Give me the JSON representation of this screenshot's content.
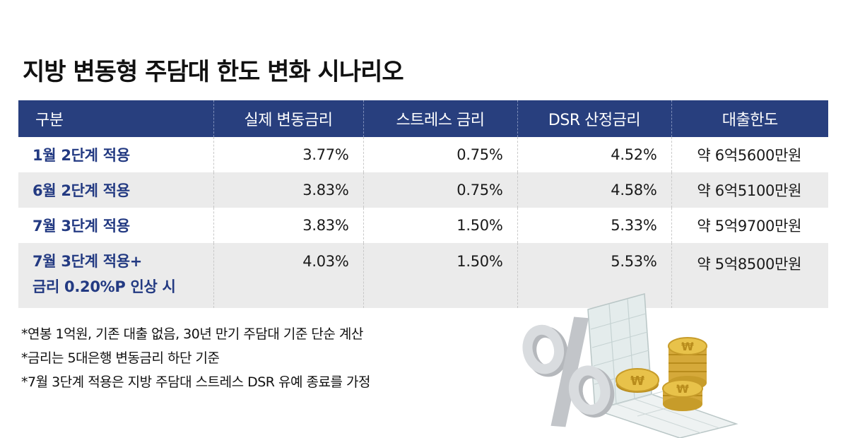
{
  "title": "지방 변동형 주담대 한도 변화 시나리오",
  "table": {
    "headers": [
      "구분",
      "실제 변동금리",
      "스트레스 금리",
      "DSR 산정금리",
      "대출한도"
    ],
    "rows": [
      {
        "label": "1월 2단계 적용",
        "label2": "",
        "actual_rate": "3.77%",
        "stress_rate": "0.75%",
        "dsr_rate": "4.52%",
        "limit": "약 6억5600만원"
      },
      {
        "label": "6월 2단계 적용",
        "label2": "",
        "actual_rate": "3.83%",
        "stress_rate": "0.75%",
        "dsr_rate": "4.58%",
        "limit": "약 6억5100만원"
      },
      {
        "label": "7월 3단계 적용",
        "label2": "",
        "actual_rate": "3.83%",
        "stress_rate": "1.50%",
        "dsr_rate": "5.33%",
        "limit": "약 5억9700만원"
      },
      {
        "label": "7월 3단계 적용+",
        "label2": "금리 0.20%P 인상 시",
        "actual_rate": "4.03%",
        "stress_rate": "1.50%",
        "dsr_rate": "5.53%",
        "limit": "약 5억8500만원"
      }
    ]
  },
  "notes": [
    "*연봉 1억원, 기존 대출 없음, 30년 만기 주담대 기준 단순 계산",
    "*금리는 5대은행 변동금리 하단 기준",
    "*7월 3단계 적용은 지방 주담대 스트레스 DSR 유예 종료를 가정"
  ],
  "colors": {
    "header_bg": "#283f7e",
    "label_text": "#233a82",
    "row_alt_bg": "#ebebeb",
    "coin": "#e8c24a"
  },
  "illustration": {
    "percent_sign": "%",
    "coin_symbol": "₩",
    "icons": [
      "percent-icon",
      "ledger-document-icon",
      "won-coin-stack-icon"
    ]
  }
}
